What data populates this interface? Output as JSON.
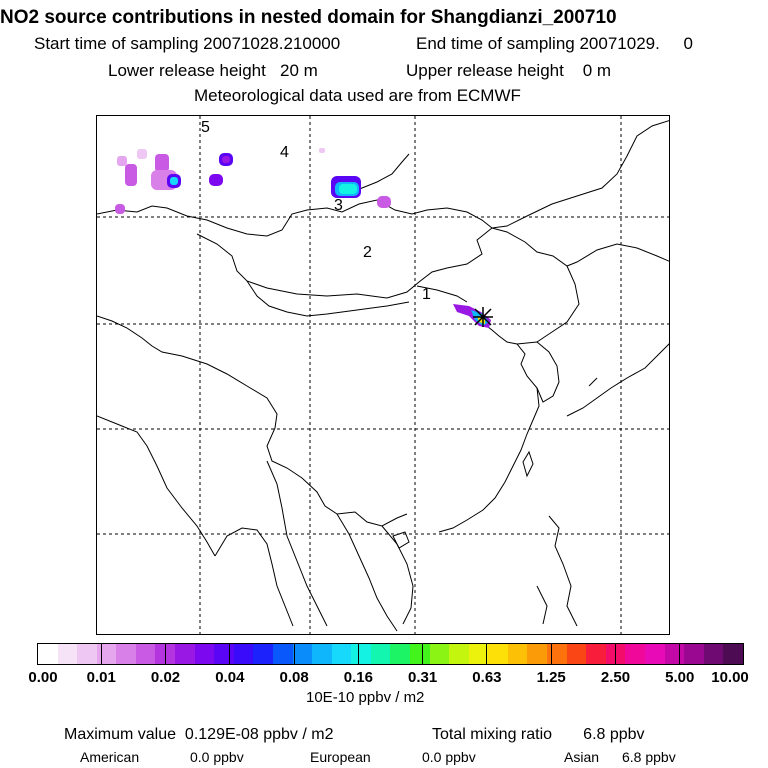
{
  "header": {
    "title": "NO2 source contributions in nested domain for Shangdianzi_200710",
    "start_time": "Start time of sampling 20071028.210000",
    "end_time": "End time of sampling 20071029.     0",
    "lower_release": "Lower release height   20 m",
    "upper_release": "Upper release height    0 m",
    "met_data": "Meteorological data used are from ECMWF"
  },
  "map": {
    "region_labels": [
      "1",
      "2",
      "3",
      "4",
      "5"
    ],
    "station_marker": "star-marker"
  },
  "colorbar": {
    "colors": [
      "#ffffff",
      "#f7e3f8",
      "#efc7f3",
      "#e6a6ee",
      "#d97fe8",
      "#c85ae3",
      "#b435e0",
      "#9a18e4",
      "#7b08ee",
      "#5a05f5",
      "#3a0afa",
      "#1c22fc",
      "#0858fc",
      "#0a8dfb",
      "#0fb6fb",
      "#16d9fb",
      "#14f2e4",
      "#12f6b0",
      "#1cf465",
      "#42f41c",
      "#8cf414",
      "#c3f50f",
      "#ecf20c",
      "#fce008",
      "#fcc106",
      "#fc9b08",
      "#fc720c",
      "#fa4615",
      "#f81d3b",
      "#f40c6a",
      "#ef0899",
      "#e80ab6",
      "#c208a6",
      "#9a0891",
      "#6f0a72",
      "#4c0b52"
    ],
    "tick_labels": [
      "0.00",
      "0.01",
      "0.02",
      "0.04",
      "0.08",
      "0.16",
      "0.31",
      "0.63",
      "1.25",
      "2.50",
      "5.00",
      "10.00"
    ],
    "unit": "10E-10 ppbv / m2"
  },
  "stats": {
    "max_value": "Maximum value  0.129E-08 ppbv / m2",
    "total_mixing": "Total mixing ratio       6.8 ppbv",
    "american_label": "American",
    "american_value": "0.0 ppbv",
    "european_label": "European",
    "european_value": "0.0 ppbv",
    "asian_label": "Asian",
    "asian_value": "6.8 ppbv"
  }
}
